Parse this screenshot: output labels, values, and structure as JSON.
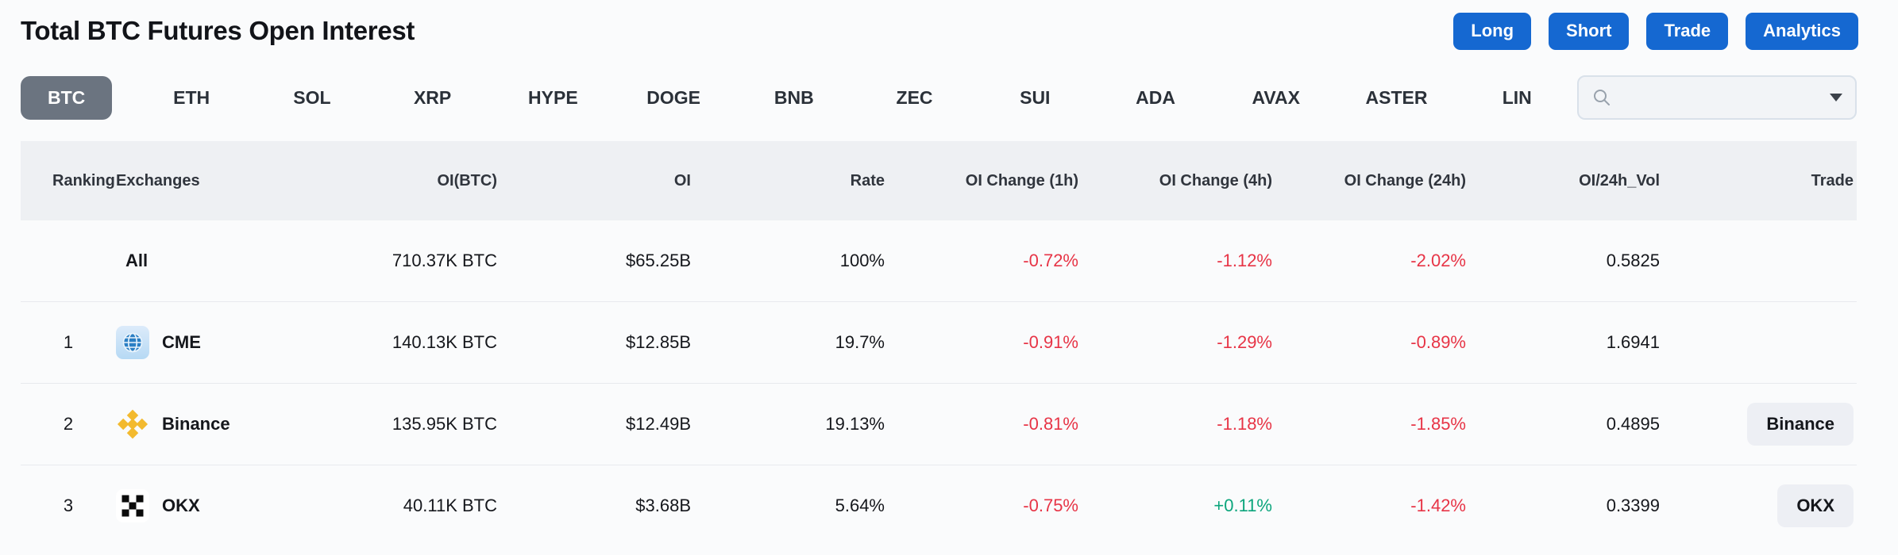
{
  "header": {
    "title": "Total BTC Futures Open Interest"
  },
  "actions": [
    {
      "label": "Long"
    },
    {
      "label": "Short"
    },
    {
      "label": "Trade"
    },
    {
      "label": "Analytics"
    }
  ],
  "tabs": {
    "selected": "BTC",
    "items": [
      "BTC",
      "ETH",
      "SOL",
      "XRP",
      "HYPE",
      "DOGE",
      "BNB",
      "ZEC",
      "SUI",
      "ADA",
      "AVAX",
      "ASTER",
      "LIN"
    ]
  },
  "search": {
    "value": "",
    "placeholder": ""
  },
  "table": {
    "columns": [
      "Ranking",
      "Exchanges",
      "OI(BTC)",
      "OI",
      "Rate",
      "OI Change (1h)",
      "OI Change (4h)",
      "OI Change (24h)",
      "OI/24h_Vol",
      "Trade"
    ],
    "rows": [
      {
        "ranking": "",
        "exchange": "All",
        "icon": "",
        "oi_btc": "710.37K BTC",
        "oi": "$65.25B",
        "rate": "100%",
        "oi_change_1h": "-0.72%",
        "oi_change_4h": "-1.12%",
        "oi_change_24h": "-2.02%",
        "oi_24h_vol": "0.5825",
        "trade": ""
      },
      {
        "ranking": "1",
        "exchange": "CME",
        "icon": "cme",
        "oi_btc": "140.13K BTC",
        "oi": "$12.85B",
        "rate": "19.7%",
        "oi_change_1h": "-0.91%",
        "oi_change_4h": "-1.29%",
        "oi_change_24h": "-0.89%",
        "oi_24h_vol": "1.6941",
        "trade": ""
      },
      {
        "ranking": "2",
        "exchange": "Binance",
        "icon": "binance",
        "oi_btc": "135.95K BTC",
        "oi": "$12.49B",
        "rate": "19.13%",
        "oi_change_1h": "-0.81%",
        "oi_change_4h": "-1.18%",
        "oi_change_24h": "-1.85%",
        "oi_24h_vol": "0.4895",
        "trade": "Binance"
      },
      {
        "ranking": "3",
        "exchange": "OKX",
        "icon": "okx",
        "oi_btc": "40.11K BTC",
        "oi": "$3.68B",
        "rate": "5.64%",
        "oi_change_1h": "-0.75%",
        "oi_change_4h": "+0.11%",
        "oi_change_24h": "-1.42%",
        "oi_24h_vol": "0.3399",
        "trade": "OKX"
      }
    ]
  },
  "colors": {
    "accent_blue": "#1568d1",
    "negative_red": "#e73446",
    "positive_green": "#0ba57c",
    "selected_tab_bg": "#6b7480",
    "header_band_bg": "#eef0f3"
  }
}
